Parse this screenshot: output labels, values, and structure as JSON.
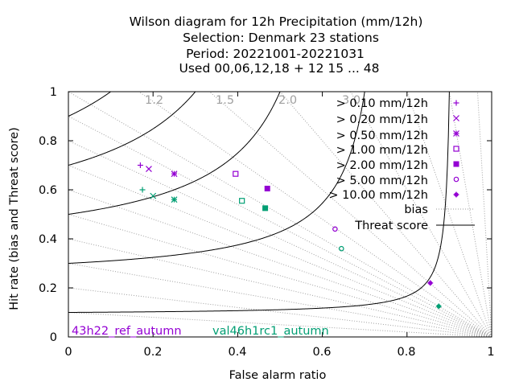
{
  "title_lines": [
    "Wilson diagram  for 12h Precipitation (mm/12h)",
    "Selection: Denmark      23 stations",
    "Period: 20221001-20221031",
    "Used  00,06,12,18  + 12 15 ... 48"
  ],
  "axes": {
    "xlabel": "False alarm ratio",
    "ylabel": "Hit rate (bias and Threat score)",
    "xticks": [
      "0",
      "0.2",
      "0.4",
      "0.6",
      "0.8",
      "1"
    ],
    "yticks": [
      "0",
      "0.2",
      "0.4",
      "0.6",
      "0.8",
      "1"
    ]
  },
  "bias_labels": [
    "1.2",
    "1.5",
    "2.0",
    "3.0"
  ],
  "legend_threshold_labels": [
    "> 0.10 mm/12h",
    "> 0.20 mm/12h",
    "> 0.50 mm/12h",
    "> 1.00 mm/12h",
    "> 2.00 mm/12h",
    "> 5.00 mm/12h",
    "> 10.00 mm/12h"
  ],
  "legend_lines": {
    "bias": "bias",
    "threat": "Threat score"
  },
  "runs": [
    {
      "name": "43h22_ref_autumn",
      "color": "#9400d3"
    },
    {
      "name": "val46h1rc1_autumn",
      "color": "#009e73"
    }
  ],
  "chart_data": {
    "type": "scatter",
    "title": "Wilson diagram  for 12h Precipitation (mm/12h)",
    "xlabel": "False alarm ratio",
    "ylabel": "Hit rate (bias and Threat score)",
    "xlim": [
      0,
      1
    ],
    "ylim": [
      0,
      1
    ],
    "bias_lines": [
      0.1,
      0.2,
      0.3,
      0.4,
      0.5,
      0.6,
      0.7,
      0.8,
      0.9,
      1.0,
      1.2,
      1.5,
      2.0,
      3.0,
      5.0,
      10.0,
      30.0
    ],
    "threat_curves": [
      0.1,
      0.3,
      0.5,
      0.7,
      0.9
    ],
    "series": [
      {
        "name": "43h22_ref_autumn",
        "points": [
          {
            "threshold": "> 0.10 mm/12h",
            "x": 0.17,
            "y": 0.7
          },
          {
            "threshold": "> 0.20 mm/12h",
            "x": 0.19,
            "y": 0.685
          },
          {
            "threshold": "> 0.50 mm/12h",
            "x": 0.25,
            "y": 0.665
          },
          {
            "threshold": "> 1.00 mm/12h",
            "x": 0.395,
            "y": 0.665
          },
          {
            "threshold": "> 2.00 mm/12h",
            "x": 0.47,
            "y": 0.605
          },
          {
            "threshold": "> 5.00 mm/12h",
            "x": 0.63,
            "y": 0.44
          },
          {
            "threshold": "> 10.00 mm/12h",
            "x": 0.855,
            "y": 0.22
          }
        ]
      },
      {
        "name": "val46h1rc1_autumn",
        "points": [
          {
            "threshold": "> 0.10 mm/12h",
            "x": 0.175,
            "y": 0.6
          },
          {
            "threshold": "> 0.20 mm/12h",
            "x": 0.2,
            "y": 0.575
          },
          {
            "threshold": "> 0.50 mm/12h",
            "x": 0.25,
            "y": 0.56
          },
          {
            "threshold": "> 1.00 mm/12h",
            "x": 0.41,
            "y": 0.555
          },
          {
            "threshold": "> 2.00 mm/12h",
            "x": 0.465,
            "y": 0.525
          },
          {
            "threshold": "> 5.00 mm/12h",
            "x": 0.645,
            "y": 0.36
          },
          {
            "threshold": "> 10.00 mm/12h",
            "x": 0.875,
            "y": 0.125
          }
        ]
      }
    ]
  }
}
